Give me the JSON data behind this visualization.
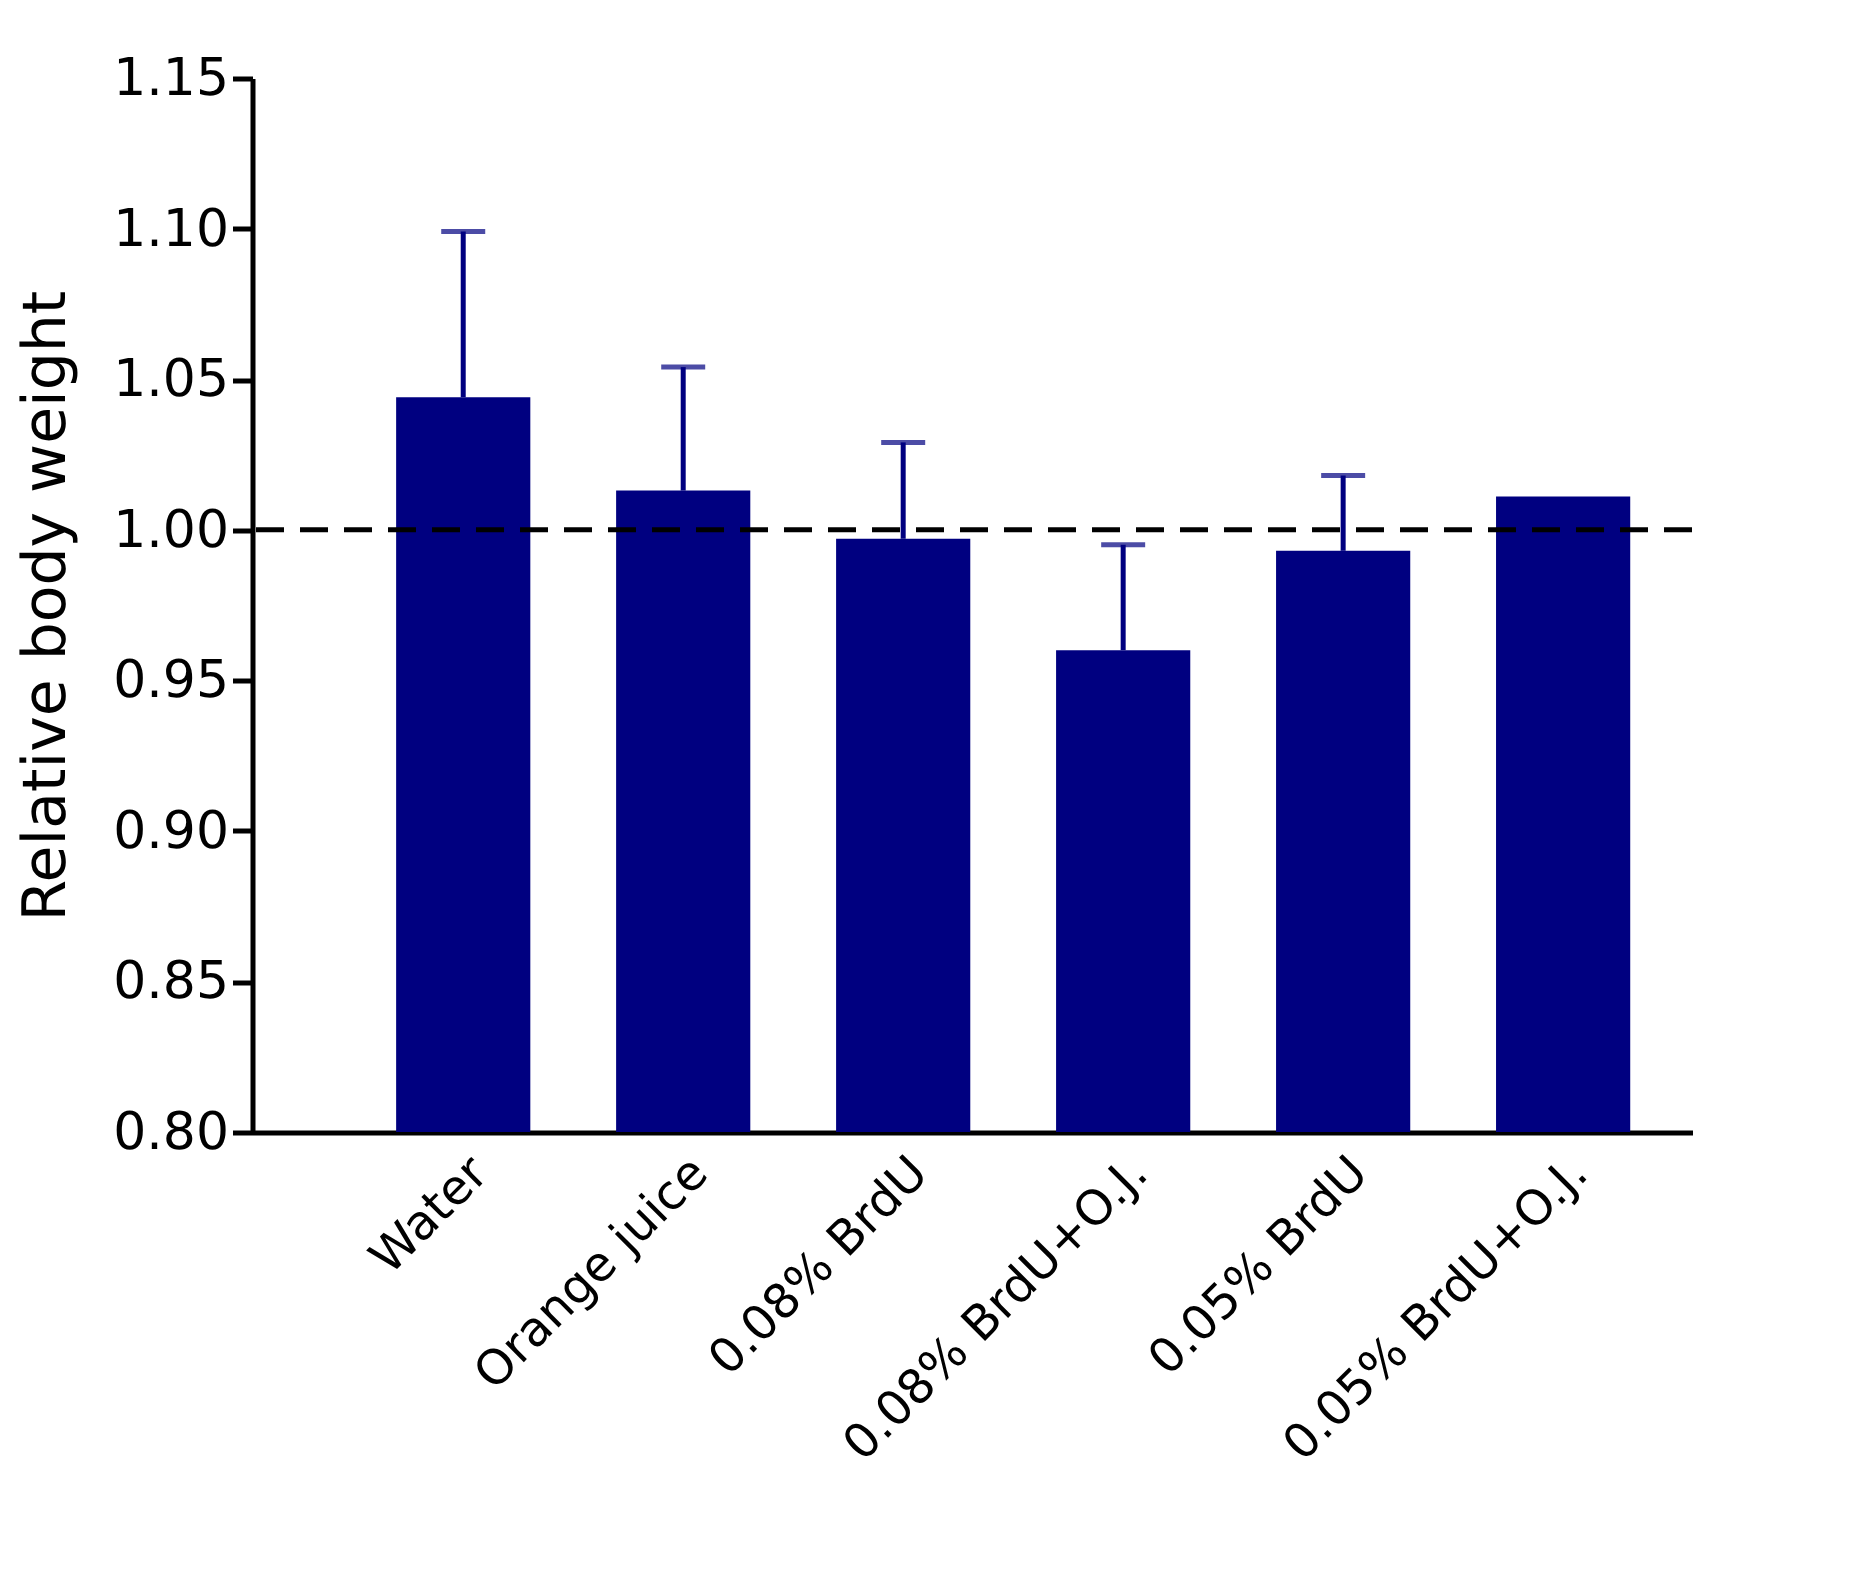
{
  "chart_data": {
    "type": "bar",
    "ylabel": "Relative body weight",
    "categories": [
      "Water",
      "Orange juice",
      "0.08% BrdU",
      "0.08% BrdU+O.J.",
      "0.05% BrdU",
      "0.05% BrdU+O.J."
    ],
    "values": [
      1.044,
      1.013,
      0.997,
      0.96,
      0.993,
      1.011
    ],
    "errors": [
      [
        1.044,
        1.099
      ],
      [
        1.013,
        1.054
      ],
      [
        0.997,
        1.029
      ],
      [
        0.96,
        0.995
      ],
      [
        0.993,
        1.018
      ],
      null
    ],
    "color": "#000080",
    "ylim": [
      0.8,
      1.15
    ],
    "yticks": [
      {
        "value": 0.8,
        "label": "0.80"
      },
      {
        "value": 0.85,
        "label": "0.85"
      },
      {
        "value": 0.9,
        "label": "0.90"
      },
      {
        "value": 0.95,
        "label": "0.95"
      },
      {
        "value": 1.0,
        "label": "1.00"
      },
      {
        "value": 1.05,
        "label": "1.05"
      },
      {
        "value": 1.1,
        "label": "1.10"
      },
      {
        "value": 1.15,
        "label": "1.15"
      }
    ],
    "ref_lines": [
      {
        "axis": "y",
        "value": 1.0,
        "color": "#000000",
        "line_style": "dashed"
      }
    ],
    "grid": false
  }
}
